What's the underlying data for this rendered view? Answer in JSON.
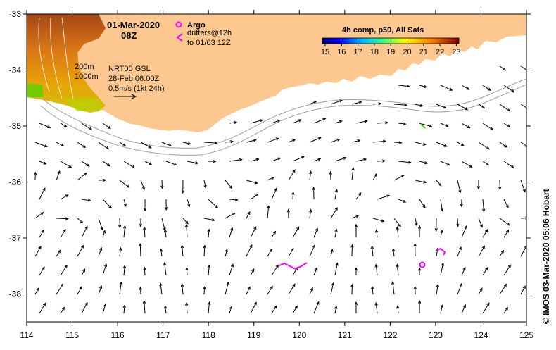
{
  "header": {
    "date": "01-Mar-2020",
    "time": "08Z"
  },
  "legend": {
    "argo_label": "Argo",
    "argo_color": "#ff00ff",
    "drifter_line1": "drifters@12h",
    "drifter_line2": "to 01/03 12Z",
    "contour1": "200m",
    "contour2": "1000m",
    "altimetry_line1": "NRT00 GSL",
    "altimetry_line2": "28-Feb 06:00Z",
    "scale_line": "0.5m/s (1kt 24h)"
  },
  "colorbar": {
    "title": "4h comp, p50, All Sats",
    "ticks": [
      "15",
      "16",
      "17",
      "18",
      "19",
      "20",
      "21",
      "22",
      "23"
    ],
    "colors": [
      "#00007f",
      "#0000ff",
      "#007fff",
      "#00ffff",
      "#7fff7f",
      "#ffff00",
      "#ff7f00",
      "#ff0000",
      "#7f0000"
    ]
  },
  "axes": {
    "x_ticks": [
      "114",
      "115",
      "116",
      "117",
      "118",
      "119",
      "120",
      "121",
      "122",
      "123",
      "124",
      "125"
    ],
    "y_ticks": [
      "-33",
      "-34",
      "-35",
      "-36",
      "-37",
      "-38"
    ]
  },
  "credit": "© IMOS 03-Mar-2020 05:06 Hobart",
  "map_colors": {
    "land": "#fcc890",
    "ocean": "#ffffff",
    "isobath": "#a0a0a0",
    "arrow": "#000000"
  }
}
